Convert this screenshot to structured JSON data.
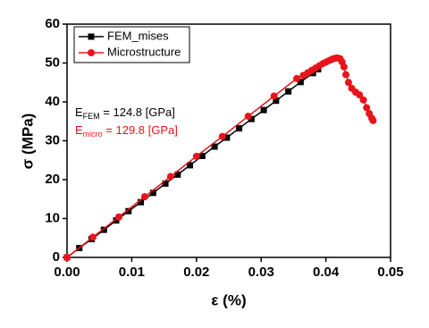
{
  "chart_data": {
    "type": "line",
    "x_label": "ε (%)",
    "y_label": "σ (MPa)",
    "xlim": [
      0,
      0.05
    ],
    "ylim": [
      0,
      60
    ],
    "xticks": [
      {
        "value": 0,
        "label": "0.00"
      },
      {
        "value": 0.01,
        "label": "0.01"
      },
      {
        "value": 0.02,
        "label": "0.02"
      },
      {
        "value": 0.03,
        "label": "0.03"
      },
      {
        "value": 0.04,
        "label": "0.04"
      },
      {
        "value": 0.05,
        "label": "0.05"
      }
    ],
    "yticks": [
      0,
      10,
      20,
      30,
      40,
      50,
      60
    ],
    "legend": "top-left",
    "series": [
      {
        "name": "FEM_mises",
        "color": "#000000",
        "marker": "square",
        "x": [
          0,
          0.0019,
          0.0038,
          0.0057,
          0.0076,
          0.0095,
          0.0114,
          0.0133,
          0.0152,
          0.0171,
          0.019,
          0.0209,
          0.0228,
          0.0247,
          0.0266,
          0.0285,
          0.0304,
          0.0323,
          0.0342,
          0.0361,
          0.038,
          0.0388
        ],
        "values": [
          0,
          2.4,
          4.7,
          7.1,
          9.5,
          11.9,
          14.2,
          16.6,
          19.0,
          21.3,
          23.7,
          26.1,
          28.5,
          30.8,
          33.2,
          35.6,
          37.9,
          40.3,
          42.7,
          45.1,
          47.4,
          48.4
        ]
      },
      {
        "name": "Microstructure",
        "color": "#e8141c",
        "marker": "circle",
        "x": [
          0,
          0.004,
          0.008,
          0.012,
          0.016,
          0.02,
          0.024,
          0.028,
          0.032,
          0.0355,
          0.0365,
          0.0372,
          0.0378,
          0.0384,
          0.039,
          0.0396,
          0.0401,
          0.0406,
          0.041,
          0.0414,
          0.0418,
          0.0422,
          0.0425,
          0.0428,
          0.0431,
          0.0435,
          0.044,
          0.0446,
          0.0452,
          0.0458,
          0.0463,
          0.0467,
          0.0471,
          0.0473
        ],
        "values": [
          0,
          5.2,
          10.4,
          15.6,
          20.8,
          26.0,
          31.1,
          36.3,
          41.5,
          46.0,
          46.8,
          47.5,
          48.1,
          48.7,
          49.3,
          49.9,
          50.3,
          50.7,
          51.0,
          51.2,
          51.3,
          51.1,
          50.3,
          49.0,
          47.0,
          45.0,
          43.5,
          42.5,
          41.8,
          40.5,
          38.5,
          37.0,
          35.8,
          35.2
        ]
      }
    ],
    "annotations": [
      {
        "base": "E",
        "sub": "FEM",
        "rest": " = 124.8 [GPa]",
        "color": "#000000"
      },
      {
        "base": "E",
        "sub": "micro",
        "rest": " = 129.8 [GPa]",
        "color": "#e8141c"
      }
    ]
  }
}
